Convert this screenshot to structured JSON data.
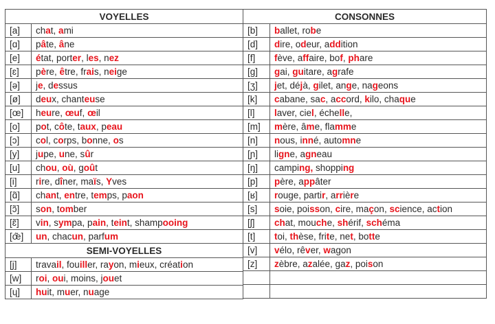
{
  "highlight_color": "#e8141c",
  "vowels": {
    "title": "VOYELLES",
    "rows": [
      {
        "sym": "[a]",
        "words": "ch{a}t, {a}mi"
      },
      {
        "sym": "[ɑ]",
        "words": "p{â}te, {â}ne"
      },
      {
        "sym": "[e]",
        "words": "{é}tat, port{er}, l{es}, n{ez}"
      },
      {
        "sym": "[ɛ]",
        "words": "p{è}re, {ê}tre, fr{ai}s, n{ei}ge"
      },
      {
        "sym": "[ə]",
        "words": "j{e}, d{e}ssus"
      },
      {
        "sym": "[ø]",
        "words": "d{eu}x, chant{eu}se"
      },
      {
        "sym": "[œ]",
        "words": "h{eu}re, {œu}f, {œ}il"
      },
      {
        "sym": "[o]",
        "words": "p{o}t, c{ô}te, t{aux}, p{eau}"
      },
      {
        "sym": "[ɔ]",
        "words": "c{o}l, c{o}rps, b{o}nne, {o}s"
      },
      {
        "sym": "[y]",
        "words": "j{u}pe, {u}ne, s{û}r"
      },
      {
        "sym": "[u]",
        "words": "ch{ou}, {où}, g{oû}t"
      },
      {
        "sym": "[i]",
        "words": "r{i}re, d{î}ner, ma{ï}s, {Y}ves"
      },
      {
        "sym": "[ɑ̃]",
        "words": "ch{an}t, {en}tre, t{em}ps, p{aon}"
      },
      {
        "sym": "[ɔ̃]",
        "words": "s{on}, t{om}ber"
      },
      {
        "sym": "[ɛ̃]",
        "words": "v{in}, s{ym}pa, p{ain}, t{ein}t, shamp{ooing}"
      },
      {
        "sym": "[œ̃]",
        "words": "{un}, chac{un}, parf{um}"
      }
    ]
  },
  "semi_vowels": {
    "title": "SEMI-VOYELLES",
    "rows": [
      {
        "sym": "[j]",
        "words": "trava{il}, fou{ill}er, ra{y}on, m{i}eux, créat{i}on"
      },
      {
        "sym": "[w]",
        "words": "r{oi}, {ou}i, moins, j{ou}et"
      },
      {
        "sym": "[ɥ]",
        "words": "{hu}it, m{u}er, n{u}age"
      }
    ]
  },
  "consonants": {
    "title": "CONSONNES",
    "rows": [
      {
        "sym": "[b]",
        "words": "{b}allet, ro{b}e"
      },
      {
        "sym": "[d]",
        "words": "{d}ire, o{d}eur, a{dd}ition"
      },
      {
        "sym": "[f]",
        "words": "{f}ève, a{ff}aire, bo{f}, {ph}are"
      },
      {
        "sym": "[g]",
        "words": "{g}ai, {gu}itare, a{g}rafe"
      },
      {
        "sym": "[ʒ]",
        "words": "{j}et, dé{j}à, {g}ilet, an{g}e, na{g}eons"
      },
      {
        "sym": "[k]",
        "words": "{c}abane, sa{c}, a{cc}ord, {k}ilo, cha{qu}e"
      },
      {
        "sym": "[l]",
        "words": "{l}aver, cie{l}, éche{ll}e,"
      },
      {
        "sym": "[m]",
        "words": "{m}ère, â{m}e, fla{mm}e"
      },
      {
        "sym": "[n]",
        "words": "{n}ous, i{nn}é, auto{mn}e"
      },
      {
        "sym": "[ɲ]",
        "words": "li{gn}e, a{gn}eau"
      },
      {
        "sym": "[ŋ]",
        "words": "campi{ng,} shoppi{ng}"
      },
      {
        "sym": "[p]",
        "words": "{p}ère, a{pp}âter"
      },
      {
        "sym": "[ʁ]",
        "words": "{r}ouge, parti{r}, a{rr}iè{r}e"
      },
      {
        "sym": "[s]",
        "words": "{s}oie, poi{ss}on, {c}ire, ma{ç}on, {sc}ience, ac{t}ion"
      },
      {
        "sym": "[ʃ]",
        "words": "{ch}at, mou{ch}e, {sh}érif, {sch}éma"
      },
      {
        "sym": "[t]",
        "words": "{t}oi, {th}èse, fri{t}e, ne{t}, bo{tt}e"
      },
      {
        "sym": "[v]",
        "words": "{v}élo, rê{v}er, {w}agon"
      },
      {
        "sym": "[z]",
        "words": "{z}èbre, a{z}alée, ga{z}, poi{s}on"
      },
      {
        "sym": "",
        "words": ""
      },
      {
        "sym": "",
        "words": ""
      }
    ]
  }
}
